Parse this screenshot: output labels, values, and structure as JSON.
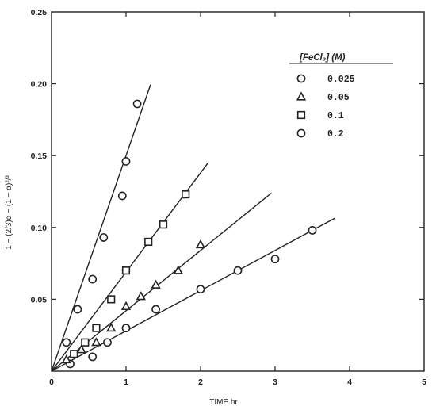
{
  "chart_data": {
    "type": "scatter",
    "xlabel": "TIME hr",
    "ylabel": "1 − (2/3)α − (1 − α)²/³",
    "xlim": [
      0,
      5
    ],
    "ylim": [
      0,
      0.25
    ],
    "x_ticks": [
      "0",
      "1",
      "2",
      "3",
      "4",
      "5"
    ],
    "y_ticks": [
      "0.05",
      "0.10",
      "0.15",
      "0.20",
      "0.25"
    ],
    "legend": {
      "title": "[FeCl₃] (M)",
      "position": "top-right"
    },
    "series": [
      {
        "name": "0.025",
        "marker": "circle",
        "x": [
          0.25,
          0.55,
          0.75,
          1.0,
          1.4,
          2.0,
          2.5,
          3.0,
          3.5
        ],
        "y": [
          0.005,
          0.01,
          0.02,
          0.03,
          0.043,
          0.057,
          0.07,
          0.078,
          0.098
        ],
        "fit_slope": 0.028,
        "fit_x_end": 3.8
      },
      {
        "name": "0.05",
        "marker": "triangle",
        "x": [
          0.2,
          0.4,
          0.6,
          0.8,
          1.0,
          1.2,
          1.4,
          1.7,
          2.0
        ],
        "y": [
          0.008,
          0.015,
          0.02,
          0.03,
          0.045,
          0.052,
          0.06,
          0.07,
          0.088
        ],
        "fit_slope": 0.042,
        "fit_x_end": 2.95
      },
      {
        "name": "0.1",
        "marker": "square",
        "x": [
          0.3,
          0.45,
          0.6,
          0.8,
          1.0,
          1.3,
          1.5,
          1.8
        ],
        "y": [
          0.012,
          0.02,
          0.03,
          0.05,
          0.07,
          0.09,
          0.102,
          0.123
        ],
        "fit_slope": 0.069,
        "fit_x_end": 2.1
      },
      {
        "name": "0.2",
        "marker": "circle",
        "x": [
          0.2,
          0.35,
          0.55,
          0.7,
          0.95,
          1.0,
          1.15
        ],
        "y": [
          0.02,
          0.043,
          0.064,
          0.093,
          0.122,
          0.146,
          0.186
        ],
        "fit_slope": 0.15,
        "fit_x_end": 1.33
      }
    ]
  }
}
